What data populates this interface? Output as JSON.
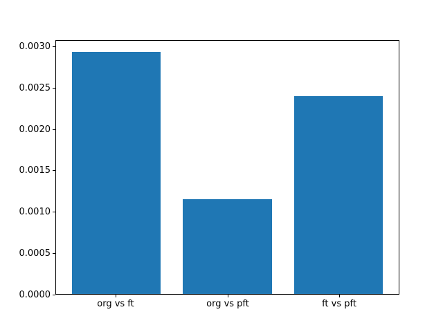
{
  "chart_data": {
    "type": "bar",
    "categories": [
      "org vs ft",
      "org vs pft",
      "ft vs pft"
    ],
    "values": [
      0.00294,
      0.00115,
      0.0024
    ],
    "x": [
      0,
      1,
      2
    ],
    "bar_width": 0.8,
    "xlim": [
      -0.54,
      2.54
    ],
    "ylim": [
      0,
      0.003075
    ],
    "yticks": [
      0.0,
      0.0005,
      0.001,
      0.0015,
      0.002,
      0.0025,
      0.003
    ],
    "ytick_labels": [
      "0.0000",
      "0.0005",
      "0.0010",
      "0.0015",
      "0.0020",
      "0.0025",
      "0.0030"
    ],
    "bar_color": "#1f77b4",
    "grid": false,
    "legend_position": null
  },
  "figure": {
    "background_color": "#ffffff",
    "spine_color": "#000000",
    "text_color": "#000000"
  }
}
